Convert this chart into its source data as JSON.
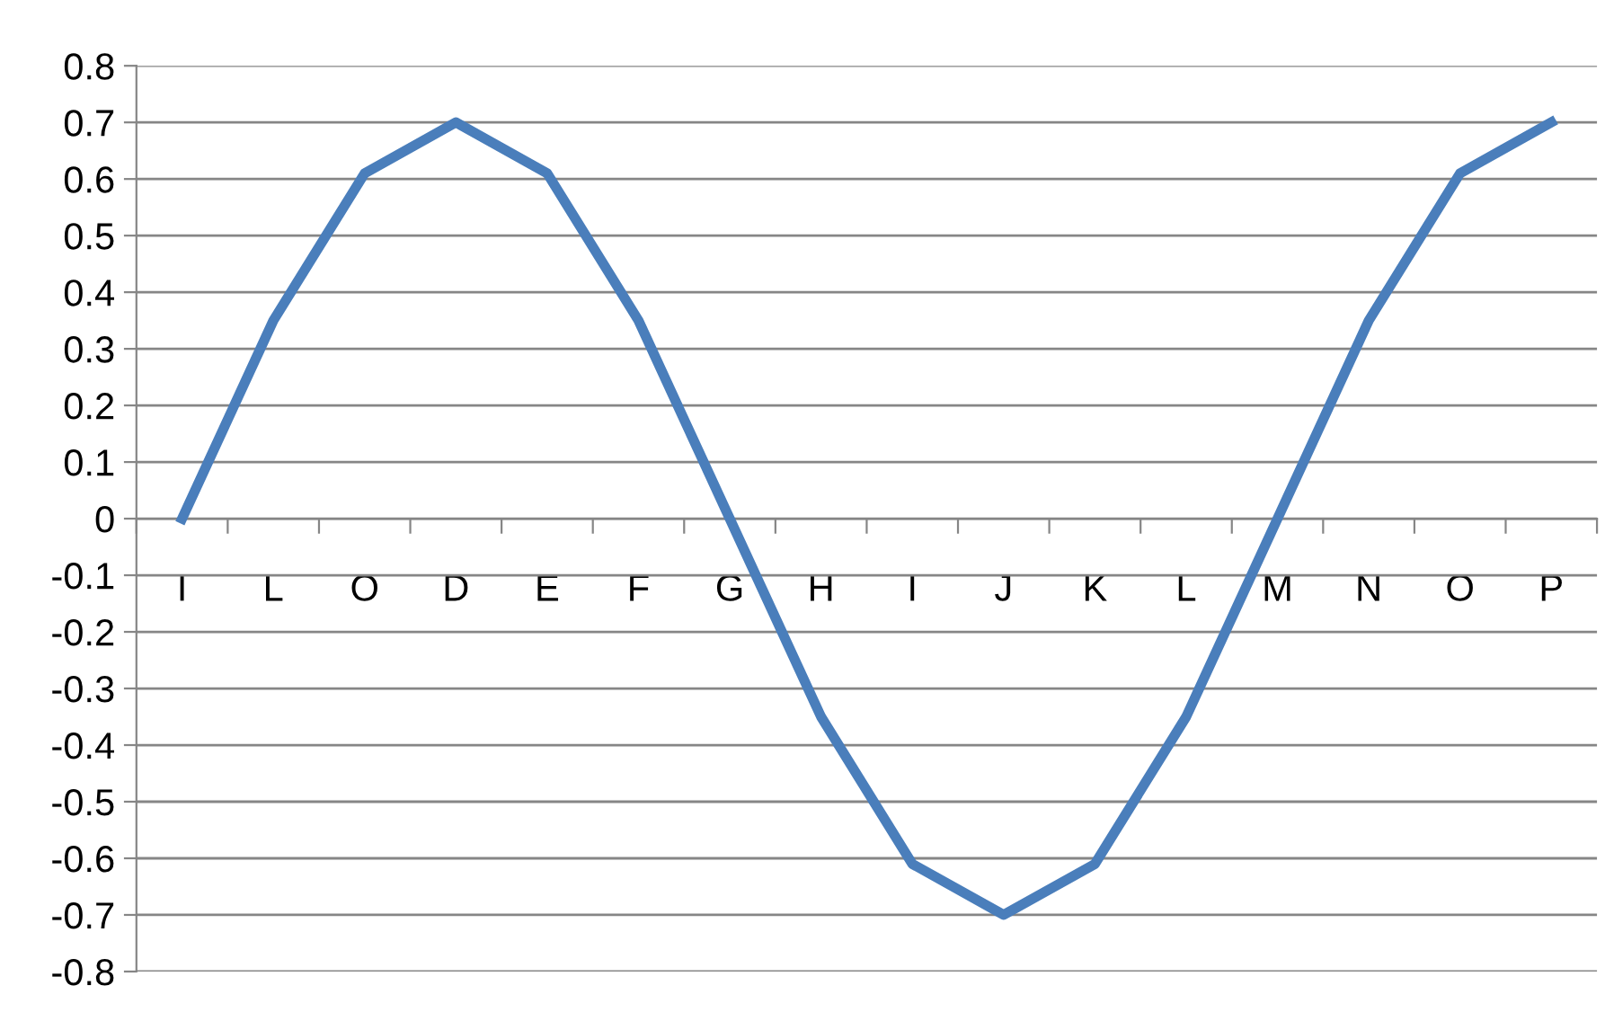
{
  "chart_data": {
    "type": "line",
    "categories": [
      "I",
      "L",
      "O",
      "D",
      "E",
      "F",
      "G",
      "H",
      "I",
      "J",
      "K",
      "L",
      "M",
      "N",
      "O",
      "P"
    ],
    "series": [
      {
        "color": "#4a7ebb",
        "values": [
          0,
          0.35,
          0.61,
          0.7,
          0.61,
          0.35,
          0,
          -0.35,
          -0.61,
          -0.7,
          -0.61,
          -0.35,
          0,
          0.35,
          0.61,
          0.7
        ]
      }
    ],
    "ylim": [
      -0.8,
      0.8
    ],
    "yticks": [
      -0.8,
      -0.7,
      -0.6,
      -0.5,
      -0.4,
      -0.3,
      -0.2,
      -0.1,
      0,
      0.1,
      0.2,
      0.3,
      0.4,
      0.5,
      0.6,
      0.7,
      0.8
    ],
    "grid": "y",
    "legend": false,
    "marker": "none",
    "line_style": "solid"
  }
}
